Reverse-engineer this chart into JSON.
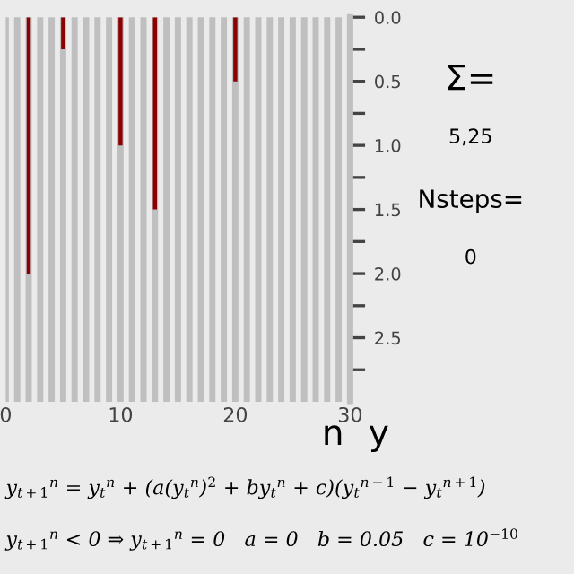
{
  "chart_data": {
    "type": "bar",
    "xlabel": "n",
    "ylabel": "y",
    "x": [
      0,
      1,
      2,
      3,
      4,
      5,
      6,
      7,
      8,
      9,
      10,
      11,
      12,
      13,
      14,
      15,
      16,
      17,
      18,
      19,
      20,
      21,
      22,
      23,
      24,
      25,
      26,
      27,
      28,
      29,
      30
    ],
    "series": [
      {
        "color": "#8b0000",
        "values": [
          0,
          0,
          2.0,
          0,
          0,
          0.25,
          0,
          0,
          0,
          0,
          1.0,
          0,
          0,
          1.5,
          0,
          0,
          0,
          0,
          0,
          0,
          0.5,
          0,
          0,
          0,
          0,
          0,
          0,
          0,
          0,
          0,
          0
        ]
      }
    ],
    "xlim": [
      0,
      30
    ],
    "ylim": [
      3,
      0
    ],
    "xticks": [
      0,
      {
        "value": 1,
        "label": null
      },
      {
        "value": 2,
        "label": null
      },
      {
        "value": 3,
        "label": null
      },
      {
        "value": 4,
        "label": null
      },
      {
        "value": 5,
        "label": null
      },
      {
        "value": 6,
        "label": null
      },
      {
        "value": 7,
        "label": null
      },
      {
        "value": 8,
        "label": null
      },
      {
        "value": 9,
        "label": null
      },
      10,
      {
        "value": 11,
        "label": null
      },
      {
        "value": 12,
        "label": null
      },
      {
        "value": 13,
        "label": null
      },
      {
        "value": 14,
        "label": null
      },
      {
        "value": 15,
        "label": null
      },
      {
        "value": 16,
        "label": null
      },
      {
        "value": 17,
        "label": null
      },
      {
        "value": 18,
        "label": null
      },
      {
        "value": 19,
        "label": null
      },
      20,
      {
        "value": 21,
        "label": null
      },
      {
        "value": 22,
        "label": null
      },
      {
        "value": 23,
        "label": null
      },
      {
        "value": 24,
        "label": null
      },
      {
        "value": 25,
        "label": null
      },
      {
        "value": 26,
        "label": null
      },
      {
        "value": 27,
        "label": null
      },
      {
        "value": 28,
        "label": null
      },
      {
        "value": 29,
        "label": null
      },
      30
    ],
    "yticks": [
      {
        "value": 0,
        "label": "0.0"
      },
      {
        "value": 0.25,
        "label": null
      },
      0.5,
      {
        "value": 0.75,
        "label": null
      },
      {
        "value": 1,
        "label": "1.0"
      },
      {
        "value": 1.25,
        "label": null
      },
      1.5,
      {
        "value": 1.75,
        "label": null
      },
      {
        "value": 2,
        "label": "2.0"
      },
      {
        "value": 2.25,
        "label": null
      },
      2.5,
      {
        "value": 2.75,
        "label": null
      }
    ],
    "grid": "x",
    "legend": false,
    "annotations": [
      "Σ=",
      "5,25",
      "Nsteps=",
      "0",
      "y$_{t+1}$$^{n}$ = y$_{t}$$^{n}$ + (a(y$_{t}$$^{n}$)$^{2}$ + by$_{t}$$^{n}$ + c)(y$_{t}$$^{n−1}$ − y$_{t}$$^{n+1}$)",
      "y$_{t+1}$$^{n}$ < 0 ⇒ y$_{t+1}$$^{n}$ = 0   a = 0   b = 0.05   c = 10$^{−10}$"
    ]
  }
}
